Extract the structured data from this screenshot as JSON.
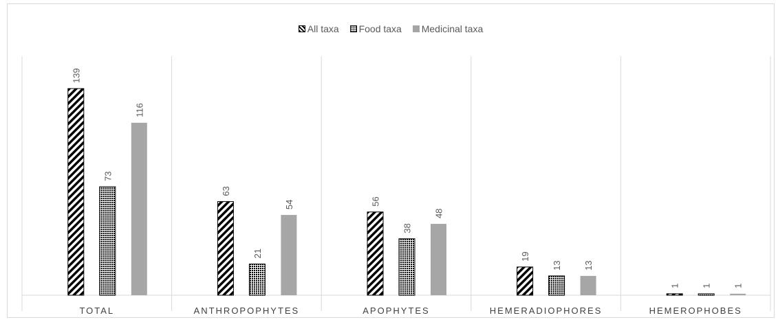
{
  "legend": {
    "items": [
      {
        "label": "All taxa",
        "key": "all"
      },
      {
        "label": "Food taxa",
        "key": "food"
      },
      {
        "label": "Medicinal taxa",
        "key": "medicinal"
      }
    ]
  },
  "chart_data": {
    "type": "bar",
    "categories": [
      "TOTAL",
      "ANTHROPOPHYTES",
      "APOPHYTES",
      "HEMERADIOPHORES",
      "HEMEROPHOBES"
    ],
    "series": [
      {
        "name": "All taxa",
        "values": [
          139,
          63,
          56,
          19,
          1
        ],
        "pattern": "diagonal-hatch",
        "color": "#000000"
      },
      {
        "name": "Food taxa",
        "values": [
          73,
          21,
          38,
          13,
          1
        ],
        "pattern": "dotted-grid",
        "color": "#000000"
      },
      {
        "name": "Medicinal taxa",
        "values": [
          116,
          54,
          48,
          13,
          1
        ],
        "pattern": "solid",
        "color": "#a6a6a6"
      }
    ],
    "ylim": [
      0,
      139
    ],
    "title": "",
    "xlabel": "",
    "ylabel": "",
    "grid": false,
    "category_separators": true,
    "legend_position": "top",
    "data_labels": true,
    "data_label_rotation": "vertical"
  }
}
